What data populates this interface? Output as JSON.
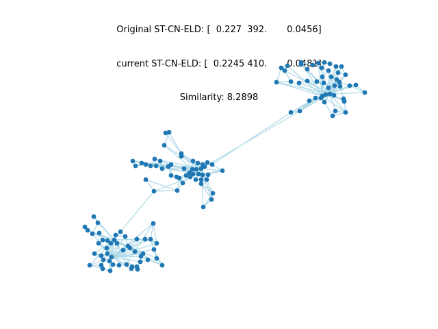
{
  "title_lines": [
    "Original ST-CN-ELD: [  0.227  392.       0.0456]",
    "current ST-CN-ELD: [  0.2245 410.       0.0481]",
    "Similarity: 8.2898"
  ],
  "colors": {
    "node": "#1f77b4",
    "edge": "#add8e6",
    "background": "#ffffff",
    "text": "#000000"
  },
  "graph": {
    "description_shown": false,
    "clusters": 3
  }
}
